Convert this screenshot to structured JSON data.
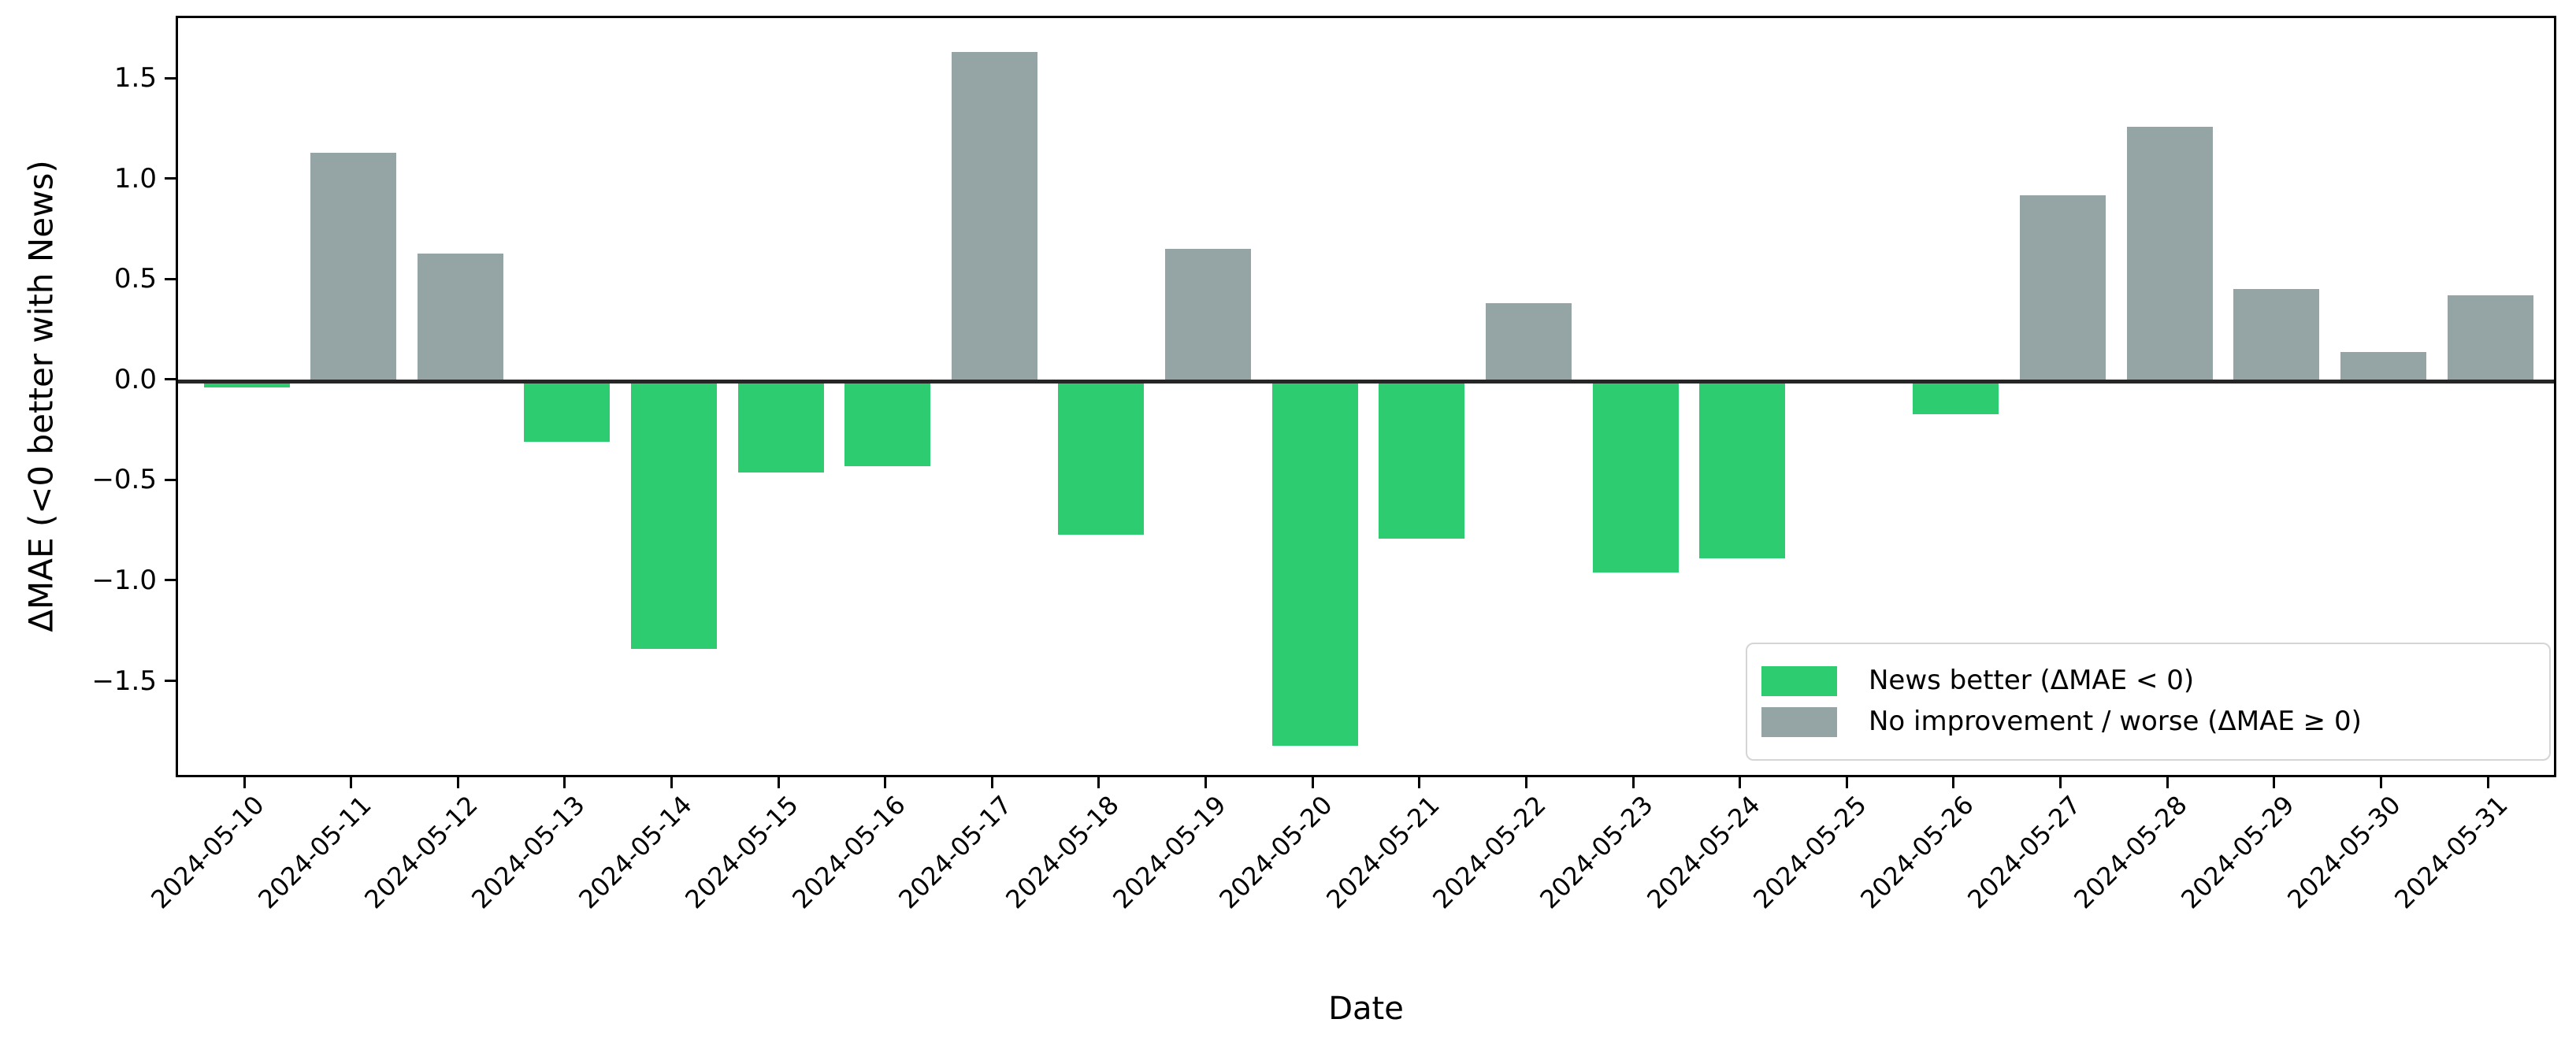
{
  "chart_data": {
    "type": "bar",
    "title": "",
    "xlabel": "Date",
    "ylabel": "ΔMAE (<0 better with News)",
    "categories": [
      "2024-05-10",
      "2024-05-11",
      "2024-05-12",
      "2024-05-13",
      "2024-05-14",
      "2024-05-15",
      "2024-05-16",
      "2024-05-17",
      "2024-05-18",
      "2024-05-19",
      "2024-05-20",
      "2024-05-21",
      "2024-05-22",
      "2024-05-23",
      "2024-05-24",
      "2024-05-25",
      "2024-05-26",
      "2024-05-27",
      "2024-05-28",
      "2024-05-29",
      "2024-05-30",
      "2024-05-31"
    ],
    "values": [
      -0.03,
      1.14,
      0.64,
      -0.3,
      -1.33,
      -0.45,
      -0.42,
      1.64,
      -0.76,
      0.66,
      -1.81,
      -0.78,
      0.39,
      -0.95,
      -0.88,
      0.0,
      -0.16,
      0.93,
      1.27,
      0.46,
      0.15,
      0.43
    ],
    "ylim": [
      -1.98,
      1.81
    ],
    "yticks": [
      1.5,
      1.0,
      0.5,
      0.0,
      -0.5,
      -1.0,
      -1.5
    ],
    "grid": false,
    "zero_line": true,
    "legend": {
      "position": "lower right",
      "entries": [
        {
          "label": "News better (ΔMAE < 0)",
          "color": "#2ecc71"
        },
        {
          "label": "No improvement / worse (ΔMAE ≥ 0)",
          "color": "#95a5a6"
        }
      ]
    },
    "colors": {
      "negative_bar": "#2ecc71",
      "positive_bar": "#95a5a6",
      "zero_line": "#262626",
      "spine": "#000000"
    }
  }
}
